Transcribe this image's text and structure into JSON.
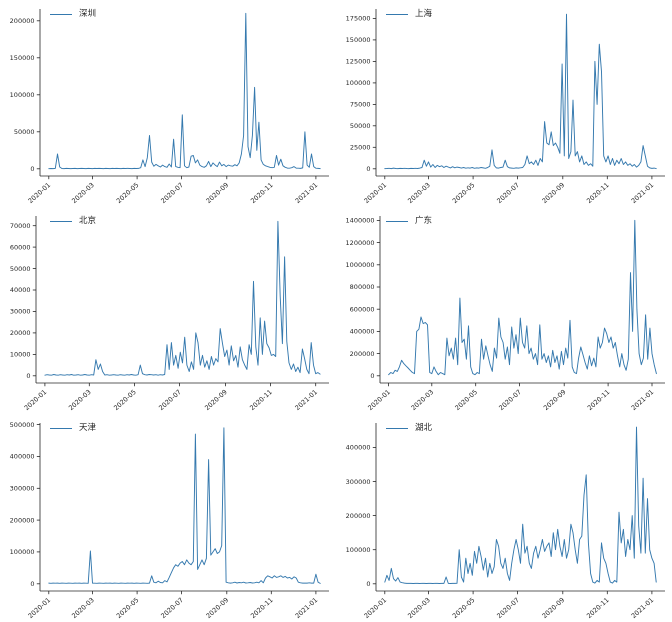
{
  "style": {
    "line_color": "#3579ae",
    "spine_color": "#262626",
    "tick_label_color": "#262626",
    "background": "#ffffff"
  },
  "chart_data": [
    {
      "type": "line",
      "series": "深圳",
      "position": "top-left",
      "ylim": [
        0,
        216000
      ],
      "yticks": [
        0,
        50000,
        100000,
        150000,
        200000
      ],
      "xtick_labels": [
        "2020-01",
        "2020-03",
        "2020-05",
        "2020-07",
        "2020-09",
        "2020-11",
        "2021-01"
      ],
      "xtick_days": [
        0,
        60,
        121,
        182,
        244,
        305,
        366
      ],
      "x_start_day": 0,
      "x_step_days": 3,
      "values": [
        200,
        400,
        300,
        600,
        20000,
        2500,
        400,
        300,
        500,
        400,
        300,
        400,
        500,
        300,
        400,
        600,
        400,
        300,
        500,
        400,
        300,
        500,
        400,
        600,
        400,
        300,
        500,
        400,
        300,
        500,
        400,
        600,
        400,
        300,
        500,
        400,
        600,
        400,
        300,
        500,
        400,
        600,
        1500,
        12000,
        3000,
        15000,
        45000,
        9000,
        3500,
        6000,
        4000,
        2500,
        5000,
        3000,
        2000,
        6500,
        2500,
        40000,
        3000,
        2000,
        1500,
        73000,
        4000,
        1500,
        2500,
        17000,
        18000,
        8000,
        12000,
        5000,
        3000,
        2000,
        4000,
        10000,
        3000,
        8000,
        5000,
        3000,
        9000,
        4000,
        6000,
        3000,
        5000,
        4000,
        3500,
        5500,
        4000,
        8000,
        20000,
        45000,
        210000,
        30000,
        15000,
        45000,
        110000,
        25000,
        63000,
        12000,
        6000,
        4000,
        3000,
        2000,
        1500,
        2000,
        18000,
        5000,
        13000,
        4000,
        2000,
        1000,
        800,
        1500,
        3000,
        1000,
        800,
        600,
        1200,
        50000,
        5000,
        2000,
        20000,
        3000,
        800,
        500,
        300
      ]
    },
    {
      "type": "line",
      "series": "上海",
      "position": "top-right",
      "ylim": [
        0,
        186000
      ],
      "yticks": [
        0,
        25000,
        50000,
        75000,
        100000,
        125000,
        150000,
        175000
      ],
      "xtick_labels": [
        "2020-01",
        "2020-03",
        "2020-05",
        "2020-07",
        "2020-09",
        "2020-11",
        "2021-01"
      ],
      "xtick_days": [
        0,
        60,
        121,
        182,
        244,
        305,
        366
      ],
      "x_start_day": 0,
      "x_step_days": 3,
      "values": [
        200,
        400,
        600,
        300,
        800,
        400,
        300,
        500,
        400,
        600,
        400,
        300,
        500,
        400,
        600,
        400,
        800,
        1500,
        10000,
        3000,
        8000,
        2000,
        5000,
        1500,
        4000,
        2500,
        3500,
        1500,
        3000,
        2000,
        1000,
        2500,
        1200,
        2000,
        1500,
        800,
        1500,
        700,
        1200,
        800,
        1500,
        600,
        1000,
        800,
        1500,
        1000,
        600,
        1500,
        3000,
        22000,
        4000,
        1000,
        800,
        1500,
        2000,
        10000,
        2500,
        1000,
        800,
        600,
        1000,
        800,
        1200,
        1500,
        5000,
        15000,
        6000,
        8000,
        5000,
        10000,
        4000,
        12000,
        8000,
        55000,
        30000,
        28000,
        43000,
        27000,
        30000,
        25000,
        18000,
        122000,
        15000,
        180000,
        12000,
        20000,
        80000,
        15000,
        20000,
        8000,
        15000,
        5000,
        8000,
        4000,
        6000,
        3000,
        125000,
        75000,
        145000,
        113000,
        15000,
        8000,
        15000,
        5000,
        12000,
        4000,
        10000,
        6000,
        12000,
        5000,
        8000,
        4000,
        6000,
        3000,
        5000,
        2000,
        4000,
        8000,
        27000,
        15000,
        3000,
        1000,
        500,
        800,
        300
      ]
    },
    {
      "type": "line",
      "series": "北京",
      "position": "middle-left",
      "ylim": [
        0,
        74500
      ],
      "yticks": [
        0,
        10000,
        20000,
        30000,
        40000,
        50000,
        60000,
        70000
      ],
      "xtick_labels": [
        "2020-01",
        "2020-03",
        "2020-05",
        "2020-07",
        "2020-09",
        "2020-11",
        "2021-01"
      ],
      "xtick_days": [
        0,
        60,
        121,
        182,
        244,
        305,
        366
      ],
      "x_start_day": 0,
      "x_step_days": 3,
      "values": [
        300,
        500,
        400,
        300,
        600,
        400,
        300,
        500,
        400,
        300,
        500,
        400,
        600,
        300,
        400,
        500,
        300,
        400,
        600,
        400,
        300,
        500,
        400,
        7500,
        3000,
        5500,
        2000,
        400,
        500,
        300,
        400,
        500,
        400,
        300,
        500,
        400,
        300,
        500,
        400,
        600,
        400,
        300,
        500,
        5000,
        1000,
        500,
        400,
        600,
        500,
        400,
        500,
        300,
        500,
        400,
        600,
        14500,
        3000,
        15500,
        5000,
        9500,
        3500,
        11000,
        6000,
        18000,
        5000,
        2000,
        6500,
        3000,
        20000,
        15500,
        5000,
        9500,
        4000,
        7000,
        3000,
        9000,
        5000,
        8000,
        6500,
        22000,
        15000,
        9000,
        12000,
        5000,
        14000,
        7000,
        9500,
        4000,
        13500,
        7500,
        5000,
        3000,
        14500,
        10000,
        44000,
        13500,
        5000,
        27000,
        10000,
        25500,
        15000,
        13000,
        9500,
        10000,
        9000,
        72000,
        37000,
        15000,
        55500,
        16000,
        6000,
        3000,
        5500,
        2000,
        4000,
        1500,
        12500,
        8000,
        3000,
        1000,
        15500,
        5000,
        1000,
        1500,
        800
      ]
    },
    {
      "type": "line",
      "series": "广东",
      "position": "middle-right",
      "ylim": [
        0,
        1440000
      ],
      "yticks": [
        0,
        200000,
        400000,
        600000,
        800000,
        1000000,
        1200000,
        1400000
      ],
      "xtick_labels": [
        "2020-01",
        "2020-03",
        "2020-05",
        "2020-07",
        "2020-09",
        "2020-11",
        "2021-01"
      ],
      "xtick_days": [
        0,
        60,
        121,
        182,
        244,
        305,
        366
      ],
      "x_start_day": 0,
      "x_step_days": 3,
      "values": [
        10000,
        30000,
        20000,
        50000,
        40000,
        80000,
        140000,
        110000,
        90000,
        70000,
        50000,
        30000,
        20000,
        400000,
        420000,
        530000,
        470000,
        480000,
        460000,
        30000,
        20000,
        80000,
        40000,
        10000,
        30000,
        20000,
        10000,
        340000,
        180000,
        250000,
        150000,
        340000,
        100000,
        700000,
        300000,
        330000,
        150000,
        450000,
        80000,
        20000,
        10000,
        30000,
        20000,
        330000,
        150000,
        270000,
        180000,
        100000,
        40000,
        250000,
        160000,
        520000,
        350000,
        300000,
        150000,
        260000,
        100000,
        440000,
        250000,
        370000,
        200000,
        520000,
        300000,
        250000,
        450000,
        200000,
        250000,
        150000,
        200000,
        100000,
        460000,
        150000,
        200000,
        120000,
        180000,
        80000,
        230000,
        120000,
        180000,
        60000,
        220000,
        100000,
        250000,
        160000,
        500000,
        80000,
        30000,
        20000,
        160000,
        260000,
        190000,
        120000,
        60000,
        180000,
        90000,
        160000,
        80000,
        350000,
        250000,
        300000,
        430000,
        380000,
        300000,
        350000,
        250000,
        300000,
        180000,
        80000,
        200000,
        100000,
        50000,
        150000,
        930000,
        400000,
        1400000,
        600000,
        200000,
        100000,
        160000,
        550000,
        150000,
        430000,
        200000,
        100000,
        20000
      ]
    },
    {
      "type": "line",
      "series": "天津",
      "position": "bottom-left",
      "ylim": [
        0,
        505000
      ],
      "yticks": [
        0,
        100000,
        200000,
        300000,
        400000,
        500000
      ],
      "xtick_labels": [
        "2020-01",
        "2020-03",
        "2020-05",
        "2020-07",
        "2020-09",
        "2020-11",
        "2021-01"
      ],
      "xtick_days": [
        0,
        60,
        121,
        182,
        244,
        305,
        366
      ],
      "x_start_day": 0,
      "x_step_days": 3,
      "values": [
        2000,
        1500,
        2000,
        1800,
        2200,
        1500,
        2000,
        1800,
        1500,
        2000,
        1800,
        1500,
        2000,
        1800,
        2200,
        1500,
        2000,
        1800,
        1500,
        103000,
        2000,
        1800,
        1500,
        2000,
        1800,
        1500,
        2000,
        1800,
        2200,
        1500,
        2000,
        1800,
        1500,
        2000,
        1800,
        1500,
        2000,
        1800,
        2200,
        1500,
        2000,
        1800,
        1500,
        2000,
        1800,
        1500,
        2000,
        25000,
        5000,
        3000,
        8000,
        4000,
        3000,
        10000,
        6000,
        20000,
        35000,
        50000,
        60000,
        55000,
        65000,
        70000,
        60000,
        75000,
        65000,
        60000,
        70000,
        470000,
        45000,
        60000,
        75000,
        60000,
        80000,
        390000,
        90000,
        100000,
        110000,
        95000,
        100000,
        120000,
        490000,
        5000,
        3000,
        2000,
        3000,
        5000,
        2500,
        4000,
        3000,
        5000,
        2500,
        3000,
        4000,
        2500,
        3000,
        5000,
        3000,
        10000,
        3000,
        18000,
        25000,
        22000,
        18000,
        25000,
        20000,
        22000,
        25000,
        20000,
        23000,
        18000,
        20000,
        15000,
        22000,
        18000,
        5000,
        3000,
        2000,
        2000,
        2000,
        3000,
        2000,
        2000,
        30000,
        5000,
        1000
      ]
    },
    {
      "type": "line",
      "series": "湖北",
      "position": "bottom-right",
      "ylim": [
        0,
        472000
      ],
      "yticks": [
        0,
        100000,
        200000,
        300000,
        400000
      ],
      "xtick_labels": [
        "2020-01",
        "2020-03",
        "2020-05",
        "2020-07",
        "2020-09",
        "2020-11",
        "2021-01"
      ],
      "xtick_days": [
        0,
        60,
        121,
        182,
        244,
        305,
        366
      ],
      "x_start_day": 0,
      "x_step_days": 3,
      "values": [
        5000,
        25000,
        10000,
        45000,
        15000,
        8000,
        18000,
        5000,
        3000,
        2000,
        1000,
        1500,
        1000,
        800,
        1200,
        1000,
        800,
        1500,
        1000,
        800,
        1200,
        1000,
        800,
        1500,
        1000,
        800,
        1200,
        1000,
        20000,
        1000,
        800,
        1200,
        1000,
        1500,
        100000,
        20000,
        5000,
        75000,
        30000,
        60000,
        25000,
        95000,
        60000,
        110000,
        80000,
        40000,
        75000,
        20000,
        60000,
        30000,
        50000,
        130000,
        110000,
        60000,
        45000,
        75000,
        30000,
        10000,
        60000,
        100000,
        130000,
        100000,
        60000,
        175000,
        90000,
        110000,
        60000,
        45000,
        90000,
        110000,
        75000,
        100000,
        130000,
        95000,
        110000,
        120000,
        80000,
        150000,
        100000,
        160000,
        110000,
        80000,
        130000,
        75000,
        100000,
        175000,
        150000,
        100000,
        60000,
        130000,
        140000,
        260000,
        320000,
        120000,
        30000,
        5000,
        2000,
        10000,
        5000,
        120000,
        75000,
        60000,
        30000,
        5000,
        2000,
        10000,
        5000,
        210000,
        120000,
        160000,
        80000,
        130000,
        100000,
        200000,
        75000,
        460000,
        170000,
        90000,
        310000,
        90000,
        250000,
        100000,
        75000,
        60000,
        5000
      ]
    }
  ]
}
